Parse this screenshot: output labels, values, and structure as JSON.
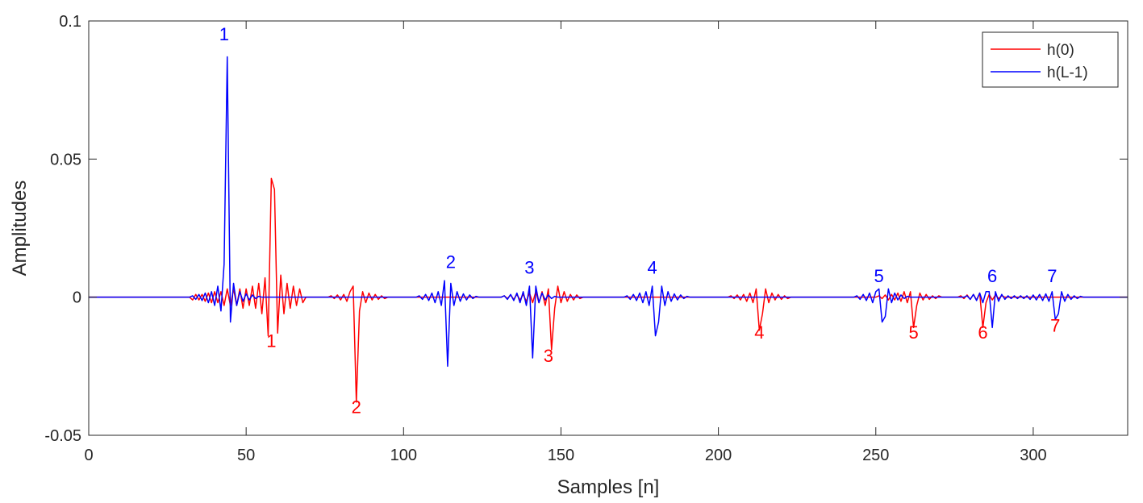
{
  "chart_data": {
    "type": "line",
    "xlabel": "Samples [n]",
    "ylabel": "Amplitudes",
    "xlim": [
      0,
      330
    ],
    "ylim": [
      -0.05,
      0.1
    ],
    "xticks": [
      0,
      50,
      100,
      150,
      200,
      250,
      300
    ],
    "yticks": [
      -0.05,
      0,
      0.05,
      0.1
    ],
    "xtick_labels": [
      "0",
      "50",
      "100",
      "150",
      "200",
      "250",
      "300"
    ],
    "ytick_labels": [
      "-0.05",
      "0",
      "0.05",
      "0.1"
    ],
    "grid": false,
    "legend_position": "top-right",
    "series": [
      {
        "name": "h(0)",
        "color": "#ff0000",
        "points": [
          [
            0,
            0
          ],
          [
            32,
            0
          ],
          [
            33,
            -0.001
          ],
          [
            34,
            0.001
          ],
          [
            35,
            -0.001
          ],
          [
            36,
            0.001
          ],
          [
            37,
            -0.0015
          ],
          [
            38,
            0.0015
          ],
          [
            39,
            -0.002
          ],
          [
            40,
            0.002
          ],
          [
            41,
            -0.002
          ],
          [
            42,
            0.002
          ],
          [
            43,
            -0.003
          ],
          [
            44,
            0.003
          ],
          [
            45,
            -0.003
          ],
          [
            46,
            0.003
          ],
          [
            47,
            -0.003
          ],
          [
            48,
            0.003
          ],
          [
            49,
            -0.004
          ],
          [
            50,
            0.003
          ],
          [
            51,
            -0.003
          ],
          [
            52,
            0.004
          ],
          [
            53,
            -0.004
          ],
          [
            54,
            0.005
          ],
          [
            55,
            -0.006
          ],
          [
            56,
            0.007
          ],
          [
            57,
            -0.014
          ],
          [
            58,
            0.043
          ],
          [
            59,
            0.039
          ],
          [
            60,
            -0.013
          ],
          [
            61,
            0.008
          ],
          [
            62,
            -0.006
          ],
          [
            63,
            0.005
          ],
          [
            64,
            -0.004
          ],
          [
            65,
            0.004
          ],
          [
            66,
            -0.003
          ],
          [
            67,
            0.003
          ],
          [
            68,
            -0.002
          ],
          [
            69,
            0
          ],
          [
            76,
            0
          ],
          [
            77,
            0.0005
          ],
          [
            78,
            -0.0005
          ],
          [
            79,
            0.0008
          ],
          [
            80,
            -0.001
          ],
          [
            81,
            0.001
          ],
          [
            82,
            -0.0015
          ],
          [
            83,
            0.002
          ],
          [
            84,
            0.004
          ],
          [
            85,
            -0.038
          ],
          [
            86,
            -0.005
          ],
          [
            87,
            0.002
          ],
          [
            88,
            -0.002
          ],
          [
            89,
            0.0015
          ],
          [
            90,
            -0.001
          ],
          [
            91,
            0.001
          ],
          [
            92,
            -0.0008
          ],
          [
            93,
            0.0005
          ],
          [
            94,
            -0.0005
          ],
          [
            95,
            0
          ],
          [
            131,
            0
          ],
          [
            132,
            0.0005
          ],
          [
            133,
            -0.0005
          ],
          [
            134,
            0.0008
          ],
          [
            135,
            -0.0008
          ],
          [
            136,
            0.001
          ],
          [
            137,
            -0.001
          ],
          [
            138,
            0.001
          ],
          [
            139,
            -0.0015
          ],
          [
            140,
            0.0015
          ],
          [
            141,
            -0.002
          ],
          [
            142,
            0.002
          ],
          [
            143,
            -0.002
          ],
          [
            144,
            0.002
          ],
          [
            145,
            -0.003
          ],
          [
            146,
            0.003
          ],
          [
            147,
            -0.019
          ],
          [
            148,
            -0.004
          ],
          [
            149,
            0.004
          ],
          [
            150,
            -0.002
          ],
          [
            151,
            0.002
          ],
          [
            152,
            -0.0015
          ],
          [
            153,
            0.001
          ],
          [
            154,
            -0.001
          ],
          [
            155,
            0.0008
          ],
          [
            156,
            -0.0005
          ],
          [
            157,
            0
          ],
          [
            203,
            0
          ],
          [
            204,
            0.0005
          ],
          [
            205,
            -0.0005
          ],
          [
            206,
            0.0008
          ],
          [
            207,
            -0.001
          ],
          [
            208,
            0.001
          ],
          [
            209,
            -0.0015
          ],
          [
            210,
            0.0015
          ],
          [
            211,
            -0.002
          ],
          [
            212,
            0.003
          ],
          [
            213,
            -0.012
          ],
          [
            214,
            -0.006
          ],
          [
            215,
            0.003
          ],
          [
            216,
            -0.002
          ],
          [
            217,
            0.0015
          ],
          [
            218,
            -0.001
          ],
          [
            219,
            0.001
          ],
          [
            220,
            -0.0008
          ],
          [
            221,
            0.0005
          ],
          [
            222,
            -0.0005
          ],
          [
            223,
            0
          ],
          [
            250,
            0
          ],
          [
            251,
            0.0005
          ],
          [
            252,
            -0.0005
          ],
          [
            253,
            0.0008
          ],
          [
            254,
            -0.001
          ],
          [
            255,
            0.001
          ],
          [
            256,
            -0.001
          ],
          [
            257,
            0.0015
          ],
          [
            258,
            -0.0015
          ],
          [
            259,
            0.002
          ],
          [
            260,
            -0.002
          ],
          [
            261,
            0.002
          ],
          [
            262,
            -0.011
          ],
          [
            263,
            -0.003
          ],
          [
            264,
            0.0015
          ],
          [
            265,
            -0.001
          ],
          [
            266,
            0.001
          ],
          [
            267,
            -0.0008
          ],
          [
            268,
            0.0005
          ],
          [
            269,
            -0.0005
          ],
          [
            270,
            0.0005
          ],
          [
            271,
            0
          ],
          [
            276,
            0
          ],
          [
            277,
            0.0005
          ],
          [
            278,
            -0.0005
          ],
          [
            279,
            0.0008
          ],
          [
            280,
            -0.0008
          ],
          [
            281,
            0.001
          ],
          [
            282,
            -0.001
          ],
          [
            283,
            0.0015
          ],
          [
            284,
            -0.011
          ],
          [
            285,
            -0.002
          ],
          [
            286,
            0.001
          ],
          [
            287,
            -0.001
          ],
          [
            288,
            0.0008
          ],
          [
            289,
            -0.0005
          ],
          [
            290,
            0.0005
          ],
          [
            291,
            0
          ],
          [
            330,
            0
          ]
        ]
      },
      {
        "name": "h(L-1)",
        "color": "#0000ff",
        "points": [
          [
            0,
            0
          ],
          [
            32,
            0
          ],
          [
            33,
            0.0005
          ],
          [
            34,
            -0.0008
          ],
          [
            35,
            0.001
          ],
          [
            36,
            -0.0012
          ],
          [
            37,
            0.0015
          ],
          [
            38,
            -0.002
          ],
          [
            39,
            0.002
          ],
          [
            40,
            -0.003
          ],
          [
            41,
            0.004
          ],
          [
            42,
            -0.005
          ],
          [
            43,
            0.012
          ],
          [
            44,
            0.087
          ],
          [
            45,
            -0.009
          ],
          [
            46,
            0.005
          ],
          [
            47,
            -0.003
          ],
          [
            48,
            0.002
          ],
          [
            49,
            -0.0015
          ],
          [
            50,
            0.0012
          ],
          [
            51,
            -0.001
          ],
          [
            52,
            0.0008
          ],
          [
            53,
            -0.0005
          ],
          [
            54,
            0.0003
          ],
          [
            55,
            0
          ],
          [
            104,
            0
          ],
          [
            105,
            0.0005
          ],
          [
            106,
            -0.0008
          ],
          [
            107,
            0.001
          ],
          [
            108,
            -0.0012
          ],
          [
            109,
            0.0015
          ],
          [
            110,
            -0.002
          ],
          [
            111,
            0.002
          ],
          [
            112,
            -0.003
          ],
          [
            113,
            0.006
          ],
          [
            114,
            -0.025
          ],
          [
            115,
            0.005
          ],
          [
            116,
            -0.003
          ],
          [
            117,
            0.002
          ],
          [
            118,
            -0.0015
          ],
          [
            119,
            0.0012
          ],
          [
            120,
            -0.001
          ],
          [
            121,
            0.0008
          ],
          [
            122,
            -0.0005
          ],
          [
            123,
            0.0003
          ],
          [
            124,
            0
          ],
          [
            131,
            0
          ],
          [
            132,
            0.0005
          ],
          [
            133,
            -0.0008
          ],
          [
            134,
            0.001
          ],
          [
            135,
            -0.0012
          ],
          [
            136,
            0.0015
          ],
          [
            137,
            -0.002
          ],
          [
            138,
            0.002
          ],
          [
            139,
            -0.003
          ],
          [
            140,
            0.004
          ],
          [
            141,
            -0.022
          ],
          [
            142,
            0.004
          ],
          [
            143,
            -0.002
          ],
          [
            144,
            0.0015
          ],
          [
            145,
            -0.001
          ],
          [
            146,
            0.0008
          ],
          [
            147,
            -0.0005
          ],
          [
            148,
            0.0003
          ],
          [
            149,
            0
          ],
          [
            170,
            0
          ],
          [
            171,
            0.0005
          ],
          [
            172,
            -0.0008
          ],
          [
            173,
            0.001
          ],
          [
            174,
            -0.0012
          ],
          [
            175,
            0.0015
          ],
          [
            176,
            -0.002
          ],
          [
            177,
            0.002
          ],
          [
            178,
            -0.003
          ],
          [
            179,
            0.004
          ],
          [
            180,
            -0.014
          ],
          [
            181,
            -0.009
          ],
          [
            182,
            0.004
          ],
          [
            183,
            -0.003
          ],
          [
            184,
            0.002
          ],
          [
            185,
            -0.0015
          ],
          [
            186,
            0.0012
          ],
          [
            187,
            -0.001
          ],
          [
            188,
            0.0008
          ],
          [
            189,
            -0.0005
          ],
          [
            190,
            0.0003
          ],
          [
            191,
            0
          ],
          [
            243,
            0
          ],
          [
            244,
            0.0005
          ],
          [
            245,
            -0.0008
          ],
          [
            246,
            0.001
          ],
          [
            247,
            -0.0012
          ],
          [
            248,
            0.0015
          ],
          [
            249,
            -0.002
          ],
          [
            250,
            0.002
          ],
          [
            251,
            0.003
          ],
          [
            252,
            -0.009
          ],
          [
            253,
            -0.007
          ],
          [
            254,
            0.003
          ],
          [
            255,
            -0.002
          ],
          [
            256,
            0.0015
          ],
          [
            257,
            -0.001
          ],
          [
            258,
            0.0008
          ],
          [
            259,
            -0.0005
          ],
          [
            260,
            0.0003
          ],
          [
            261,
            0
          ],
          [
            278,
            0
          ],
          [
            279,
            0.0005
          ],
          [
            280,
            -0.0008
          ],
          [
            281,
            0.001
          ],
          [
            282,
            -0.0012
          ],
          [
            283,
            0.0015
          ],
          [
            284,
            -0.002
          ],
          [
            285,
            0.002
          ],
          [
            286,
            0.002
          ],
          [
            287,
            -0.011
          ],
          [
            288,
            0.002
          ],
          [
            289,
            -0.0015
          ],
          [
            290,
            0.001
          ],
          [
            291,
            -0.0008
          ],
          [
            292,
            0.0005
          ],
          [
            293,
            -0.0005
          ],
          [
            294,
            0.0005
          ],
          [
            295,
            -0.0005
          ],
          [
            296,
            0.0005
          ],
          [
            297,
            -0.0005
          ],
          [
            298,
            0.0005
          ],
          [
            299,
            -0.0008
          ],
          [
            300,
            0.0008
          ],
          [
            301,
            -0.001
          ],
          [
            302,
            0.001
          ],
          [
            303,
            -0.0012
          ],
          [
            304,
            0.0012
          ],
          [
            305,
            -0.0015
          ],
          [
            306,
            0.002
          ],
          [
            307,
            -0.008
          ],
          [
            308,
            -0.006
          ],
          [
            309,
            0.002
          ],
          [
            310,
            -0.0015
          ],
          [
            311,
            0.001
          ],
          [
            312,
            -0.0008
          ],
          [
            313,
            0.0005
          ],
          [
            314,
            -0.0005
          ],
          [
            315,
            0.0003
          ],
          [
            316,
            0
          ],
          [
            330,
            0
          ]
        ]
      }
    ],
    "annotations": [
      {
        "text": "1",
        "x": 43,
        "y": 0.093,
        "color": "#0000ff"
      },
      {
        "text": "2",
        "x": 115,
        "y": 0.0105,
        "color": "#0000ff"
      },
      {
        "text": "3",
        "x": 140,
        "y": 0.0085,
        "color": "#0000ff"
      },
      {
        "text": "4",
        "x": 179,
        "y": 0.0085,
        "color": "#0000ff"
      },
      {
        "text": "5",
        "x": 251,
        "y": 0.0055,
        "color": "#0000ff"
      },
      {
        "text": "6",
        "x": 287,
        "y": 0.0055,
        "color": "#0000ff"
      },
      {
        "text": "7",
        "x": 306,
        "y": 0.0055,
        "color": "#0000ff"
      },
      {
        "text": "1",
        "x": 58,
        "y": -0.018,
        "color": "#ff0000"
      },
      {
        "text": "2",
        "x": 85,
        "y": -0.042,
        "color": "#ff0000"
      },
      {
        "text": "3",
        "x": 146,
        "y": -0.0235,
        "color": "#ff0000"
      },
      {
        "text": "4",
        "x": 213,
        "y": -0.015,
        "color": "#ff0000"
      },
      {
        "text": "5",
        "x": 262,
        "y": -0.015,
        "color": "#ff0000"
      },
      {
        "text": "6",
        "x": 284,
        "y": -0.015,
        "color": "#ff0000"
      },
      {
        "text": "7",
        "x": 307,
        "y": -0.0125,
        "color": "#ff0000"
      }
    ]
  }
}
